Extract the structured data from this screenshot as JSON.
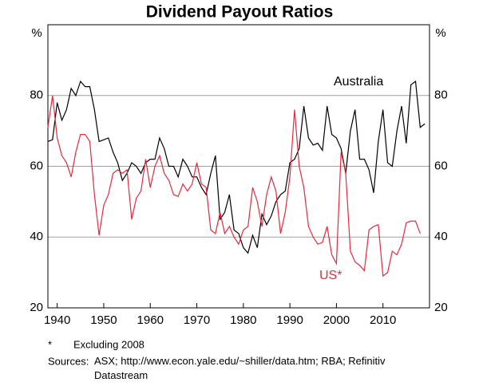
{
  "chart_data": {
    "type": "line",
    "title": "Dividend Payout Ratios",
    "y_unit": "%",
    "x": [
      1938,
      1939,
      1940,
      1941,
      1942,
      1943,
      1944,
      1945,
      1946,
      1947,
      1948,
      1949,
      1950,
      1951,
      1952,
      1953,
      1954,
      1955,
      1956,
      1957,
      1958,
      1959,
      1960,
      1961,
      1962,
      1963,
      1964,
      1965,
      1966,
      1967,
      1968,
      1969,
      1970,
      1971,
      1972,
      1973,
      1974,
      1975,
      1976,
      1977,
      1978,
      1979,
      1980,
      1981,
      1982,
      1983,
      1984,
      1985,
      1986,
      1987,
      1988,
      1989,
      1990,
      1991,
      1992,
      1993,
      1994,
      1995,
      1996,
      1997,
      1998,
      1999,
      2000,
      2001,
      2002,
      2003,
      2004,
      2005,
      2006,
      2007,
      2008,
      2009,
      2010,
      2011,
      2012,
      2013,
      2014,
      2015,
      2016,
      2017,
      2018,
      2019
    ],
    "series": [
      {
        "name": "Australia",
        "color": "#000000",
        "values": [
          67,
          67.5,
          78,
          73,
          76,
          82,
          80,
          84,
          82.5,
          82.5,
          76,
          67,
          67.5,
          68,
          64,
          61,
          56,
          58,
          61,
          60,
          58,
          61,
          62,
          62,
          68,
          65,
          60,
          60,
          57,
          62,
          60,
          57,
          57,
          54,
          52,
          58,
          63,
          45,
          47,
          52,
          42,
          41,
          37,
          35.5,
          40.5,
          37,
          46.5,
          43.5,
          46,
          50,
          52,
          53,
          61,
          62,
          65,
          77,
          68,
          66,
          66.5,
          64.5,
          77,
          69,
          68,
          65,
          58,
          70,
          76,
          62,
          62,
          59,
          52.5,
          67,
          76,
          61,
          60,
          70,
          77,
          66.5,
          83,
          84,
          71,
          72
        ]
      },
      {
        "name": "US*",
        "color": "#e8283c",
        "values": [
          71,
          80,
          68,
          63,
          61,
          57,
          64,
          69,
          69,
          67,
          52,
          40.5,
          49,
          52,
          58,
          59,
          58,
          59,
          45,
          51,
          53,
          62,
          54,
          60,
          63,
          58,
          56,
          52,
          51.5,
          55,
          53,
          55,
          61,
          55,
          54,
          42,
          41,
          47,
          41,
          43,
          40,
          38,
          42,
          43,
          54,
          50,
          43,
          52,
          57,
          53,
          41,
          47,
          57,
          76,
          60,
          54,
          43,
          40,
          38,
          38.5,
          43,
          35,
          32.5,
          64,
          58,
          36,
          33,
          32,
          30.5,
          42,
          43,
          43.5,
          29,
          30,
          36,
          35,
          38,
          44,
          44.5,
          44.5,
          41,
          null
        ]
      }
    ],
    "xlim": [
      1938,
      2020
    ],
    "xticks": [
      1940,
      1950,
      1960,
      1970,
      1980,
      1990,
      2000,
      2010
    ],
    "ylim": [
      20,
      100
    ],
    "yticks": [
      20,
      40,
      60,
      80
    ],
    "grid": true,
    "footnote": {
      "marker": "*",
      "text": "Excluding 2008"
    },
    "sources": {
      "label": "Sources:",
      "text": "ASX; http://www.econ.yale.edu/~shiller/data.htm; RBA; Refinitiv Datastream"
    }
  }
}
